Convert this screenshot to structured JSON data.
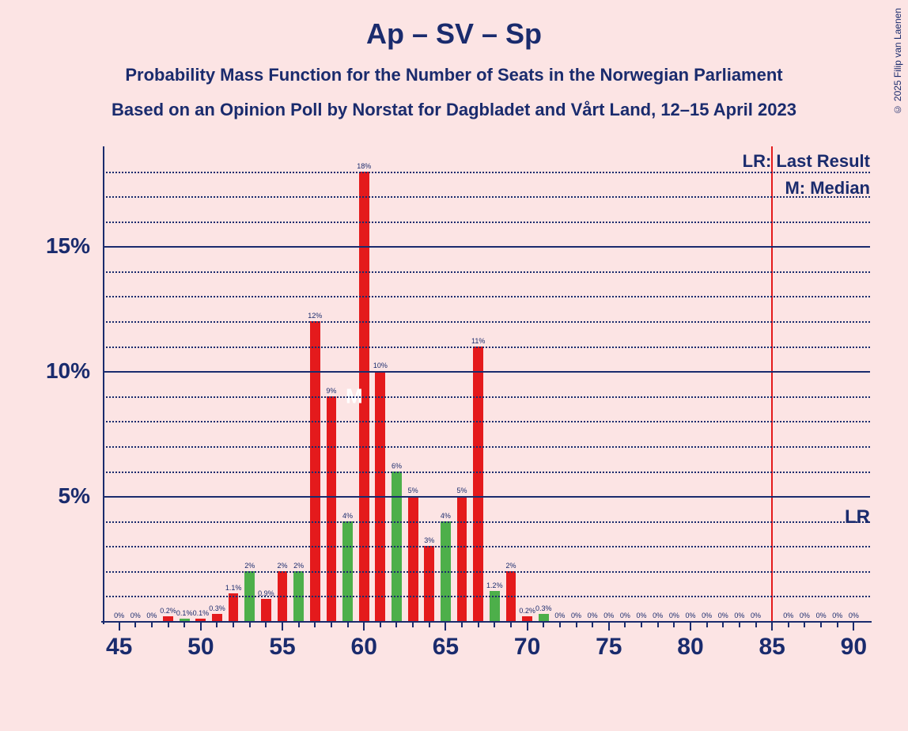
{
  "title": "Ap – SV – Sp",
  "subtitle": "Probability Mass Function for the Number of Seats in the Norwegian Parliament",
  "subtitle2": "Based on an Opinion Poll by Norstat for Dagbladet and Vårt Land, 12–15 April 2023",
  "copyright": "© 2025 Filip van Laenen",
  "legend_lr": "LR: Last Result",
  "legend_m": "M: Median",
  "lr_label": "LR",
  "m_label": "M",
  "colors": {
    "bg": "#fce4e4",
    "axis": "#1a2b6d",
    "red": "#e41a1c",
    "green": "#4daf4a"
  },
  "chart": {
    "xmin": 44,
    "xmax": 91,
    "xstep_major": 5,
    "ymin": 0,
    "ymax": 19,
    "ymajor": [
      5,
      10,
      15
    ],
    "yminor": [
      1,
      2,
      3,
      4,
      6,
      7,
      8,
      9,
      11,
      12,
      13,
      14,
      16,
      17,
      18
    ],
    "median": 60,
    "lr": 85,
    "bars": [
      {
        "x": 45,
        "v": 0,
        "c": "red",
        "lbl": "0%"
      },
      {
        "x": 46,
        "v": 0,
        "c": "red",
        "lbl": "0%"
      },
      {
        "x": 47,
        "v": 0,
        "c": "red",
        "lbl": "0%"
      },
      {
        "x": 48,
        "v": 0.2,
        "c": "red",
        "lbl": "0.2%"
      },
      {
        "x": 49,
        "v": 0.1,
        "c": "green",
        "lbl": "0.1%"
      },
      {
        "x": 50,
        "v": 0.1,
        "c": "red",
        "lbl": "0.1%"
      },
      {
        "x": 51,
        "v": 0.3,
        "c": "red",
        "lbl": "0.3%"
      },
      {
        "x": 52,
        "v": 1.1,
        "c": "red",
        "lbl": "1.1%"
      },
      {
        "x": 53,
        "v": 2,
        "c": "green",
        "lbl": "2%"
      },
      {
        "x": 54,
        "v": 0.9,
        "c": "red",
        "lbl": "0.9%"
      },
      {
        "x": 55,
        "v": 2,
        "c": "red",
        "lbl": "2%"
      },
      {
        "x": 56,
        "v": 2,
        "c": "green",
        "lbl": "2%"
      },
      {
        "x": 57,
        "v": 12,
        "c": "red",
        "lbl": "12%"
      },
      {
        "x": 58,
        "v": 9,
        "c": "red",
        "lbl": "9%"
      },
      {
        "x": 59,
        "v": 4,
        "c": "green",
        "lbl": "4%"
      },
      {
        "x": 60,
        "v": 18,
        "c": "red",
        "lbl": "18%"
      },
      {
        "x": 61,
        "v": 10,
        "c": "red",
        "lbl": "10%"
      },
      {
        "x": 62,
        "v": 6,
        "c": "green",
        "lbl": "6%"
      },
      {
        "x": 63,
        "v": 5,
        "c": "red",
        "lbl": "5%"
      },
      {
        "x": 64,
        "v": 3,
        "c": "red",
        "lbl": "3%"
      },
      {
        "x": 65,
        "v": 4,
        "c": "green",
        "lbl": "4%"
      },
      {
        "x": 66,
        "v": 5,
        "c": "red",
        "lbl": "5%"
      },
      {
        "x": 67,
        "v": 11,
        "c": "red",
        "lbl": "11%"
      },
      {
        "x": 68,
        "v": 1.2,
        "c": "green",
        "lbl": "1.2%"
      },
      {
        "x": 69,
        "v": 2,
        "c": "red",
        "lbl": "2%"
      },
      {
        "x": 70,
        "v": 0.2,
        "c": "red",
        "lbl": "0.2%"
      },
      {
        "x": 71,
        "v": 0.3,
        "c": "green",
        "lbl": "0.3%"
      },
      {
        "x": 72,
        "v": 0,
        "c": "red",
        "lbl": "0%"
      },
      {
        "x": 73,
        "v": 0,
        "c": "red",
        "lbl": "0%"
      },
      {
        "x": 74,
        "v": 0,
        "c": "red",
        "lbl": "0%"
      },
      {
        "x": 75,
        "v": 0,
        "c": "red",
        "lbl": "0%"
      },
      {
        "x": 76,
        "v": 0,
        "c": "red",
        "lbl": "0%"
      },
      {
        "x": 77,
        "v": 0,
        "c": "red",
        "lbl": "0%"
      },
      {
        "x": 78,
        "v": 0,
        "c": "red",
        "lbl": "0%"
      },
      {
        "x": 79,
        "v": 0,
        "c": "red",
        "lbl": "0%"
      },
      {
        "x": 80,
        "v": 0,
        "c": "red",
        "lbl": "0%"
      },
      {
        "x": 81,
        "v": 0,
        "c": "red",
        "lbl": "0%"
      },
      {
        "x": 82,
        "v": 0,
        "c": "red",
        "lbl": "0%"
      },
      {
        "x": 83,
        "v": 0,
        "c": "red",
        "lbl": "0%"
      },
      {
        "x": 84,
        "v": 0,
        "c": "red",
        "lbl": "0%"
      },
      {
        "x": 86,
        "v": 0,
        "c": "red",
        "lbl": "0%"
      },
      {
        "x": 87,
        "v": 0,
        "c": "red",
        "lbl": "0%"
      },
      {
        "x": 88,
        "v": 0,
        "c": "red",
        "lbl": "0%"
      },
      {
        "x": 89,
        "v": 0,
        "c": "red",
        "lbl": "0%"
      },
      {
        "x": 90,
        "v": 0,
        "c": "red",
        "lbl": "0%"
      }
    ]
  }
}
